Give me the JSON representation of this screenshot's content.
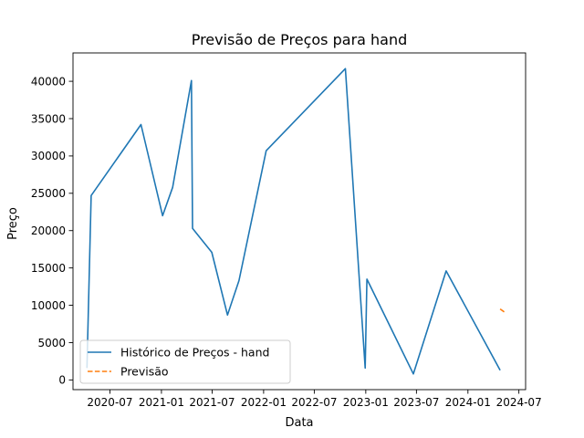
{
  "chart_data": {
    "type": "line",
    "title": "Previsão de Preços para hand",
    "xlabel": "Data",
    "ylabel": "Preço",
    "xlim": [
      "2020-02-20",
      "2024-07-25"
    ],
    "ylim": [
      -1300,
      43800
    ],
    "x_ticks": [
      {
        "value": "2020-07-01",
        "label": "2020-07"
      },
      {
        "value": "2021-01-01",
        "label": "2021-01"
      },
      {
        "value": "2021-07-01",
        "label": "2021-07"
      },
      {
        "value": "2022-01-01",
        "label": "2022-01"
      },
      {
        "value": "2022-07-01",
        "label": "2022-07"
      },
      {
        "value": "2023-01-01",
        "label": "2023-01"
      },
      {
        "value": "2023-07-01",
        "label": "2023-07"
      },
      {
        "value": "2024-01-01",
        "label": "2024-01"
      },
      {
        "value": "2024-07-01",
        "label": "2024-07"
      }
    ],
    "y_ticks": [
      0,
      5000,
      10000,
      15000,
      20000,
      25000,
      30000,
      35000,
      40000
    ],
    "grid": false,
    "legend_position": "lower-left",
    "series": [
      {
        "name": "Histórico de Preços - hand",
        "color": "#1f77b4",
        "style": "solid",
        "x": [
          "2020-04-10",
          "2020-04-25",
          "2020-10-20",
          "2021-01-05",
          "2021-02-10",
          "2021-04-18",
          "2021-04-22",
          "2021-06-30",
          "2021-08-25",
          "2021-10-05",
          "2022-01-10",
          "2022-10-20",
          "2022-12-30",
          "2023-01-05",
          "2023-06-20",
          "2023-10-15",
          "2024-04-25"
        ],
        "values": [
          1600,
          24700,
          34200,
          22000,
          25800,
          40100,
          20300,
          17100,
          8700,
          13300,
          30700,
          41700,
          1600,
          13500,
          800,
          14600,
          1300
        ]
      },
      {
        "name": "Previsão",
        "color": "#ff7f0e",
        "style": "dashed",
        "x": [
          "2024-04-25",
          "2024-05-10"
        ],
        "values": [
          9500,
          9100
        ]
      }
    ]
  }
}
